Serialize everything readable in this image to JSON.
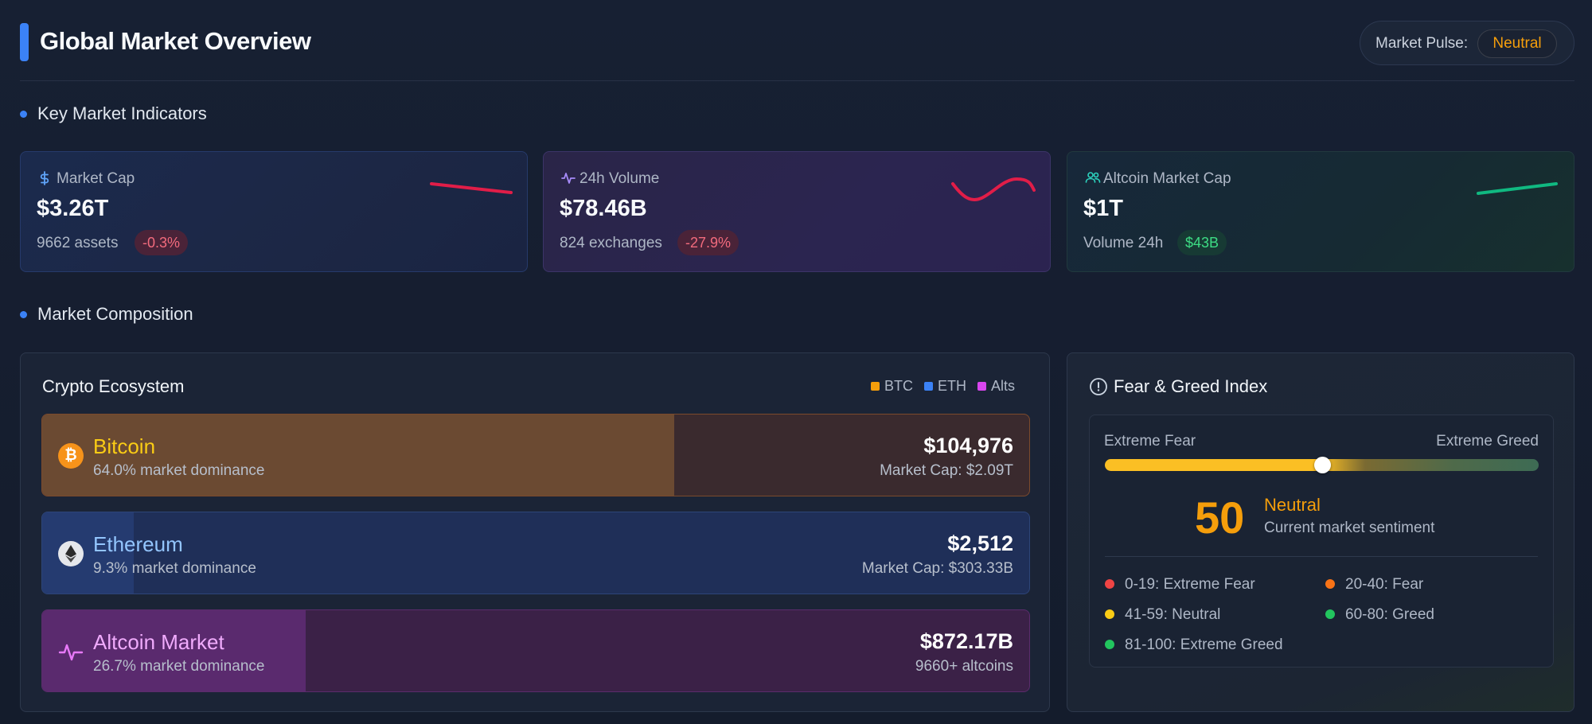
{
  "header": {
    "title": "Global Market Overview",
    "pulse_label": "Market Pulse:",
    "pulse_value": "Neutral"
  },
  "sections": {
    "indicators": "Key Market Indicators",
    "composition": "Market Composition"
  },
  "cards": [
    {
      "icon": "dollar-icon",
      "label": "Market Cap",
      "value": "$3.26T",
      "sub": "9662 assets",
      "change": "-0.3%",
      "trend": "down"
    },
    {
      "icon": "activity-icon",
      "label": "24h Volume",
      "value": "$78.46B",
      "sub": "824 exchanges",
      "change": "-27.9%",
      "trend": "wave"
    },
    {
      "icon": "users-icon",
      "label": "Altcoin Market Cap",
      "value": "$1T",
      "sub": "Volume 24h",
      "change": "$43B",
      "trend": "up"
    }
  ],
  "ecosystem": {
    "title": "Crypto Ecosystem",
    "legend": [
      "BTC",
      "ETH",
      "Alts"
    ],
    "legend_colors": [
      "#f59e0b",
      "#3b82f6",
      "#d946ef"
    ],
    "assets": [
      {
        "name": "Bitcoin",
        "dominance_text": "64.0% market dominance",
        "dominance": 64.0,
        "price": "$104,976",
        "cap": "Market Cap: $2.09T",
        "icon": "bitcoin-icon",
        "color": "#facc15"
      },
      {
        "name": "Ethereum",
        "dominance_text": "9.3% market dominance",
        "dominance": 9.3,
        "price": "$2,512",
        "cap": "Market Cap: $303.33B",
        "icon": "ethereum-icon",
        "color": "#93c5fd"
      },
      {
        "name": "Altcoin Market",
        "dominance_text": "26.7% market dominance",
        "dominance": 26.7,
        "price": "$872.17B",
        "cap": "9660+ altcoins",
        "icon": "activity-icon",
        "color": "#f0abfc"
      }
    ]
  },
  "fear_greed": {
    "title": "Fear & Greed Index",
    "left_label": "Extreme Fear",
    "right_label": "Extreme Greed",
    "value": "50",
    "level": 50,
    "label": "Neutral",
    "description": "Current market sentiment",
    "ranges": [
      {
        "text": "0-19: Extreme Fear",
        "color": "#ef4444"
      },
      {
        "text": "20-40: Fear",
        "color": "#f97316"
      },
      {
        "text": "41-59: Neutral",
        "color": "#facc15"
      },
      {
        "text": "60-80: Greed",
        "color": "#22c55e"
      },
      {
        "text": "81-100: Extreme Greed",
        "color": "#22c55e"
      }
    ]
  }
}
